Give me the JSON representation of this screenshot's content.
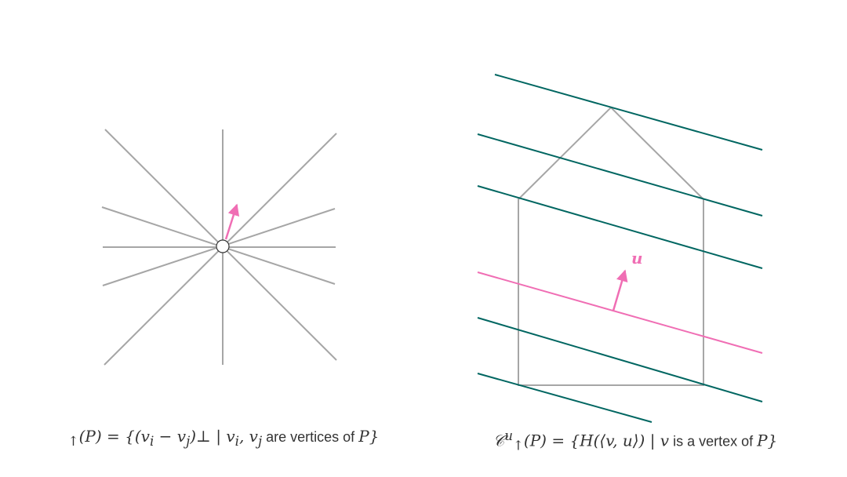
{
  "colors": {
    "line_gray": "#a6a6a6",
    "line_teal": "#006661",
    "accent_pink": "#f06eb4",
    "caption_text": "#333333"
  },
  "left_figure": {
    "arrow_color": "#f06eb4"
  },
  "right_figure": {
    "vector_label": "u",
    "highlight_color": "#f06eb4",
    "hyperplane_color": "#006661"
  },
  "captions": {
    "left": {
      "lhs": "𝒭",
      "lhs_sub": "↑",
      "open": "(P) = {(v",
      "sub_i": "i",
      "minus": " − v",
      "sub_j": "j",
      "perp": ")⊥",
      "bar": " | v",
      "sub_i2": "i",
      "comma": ", v",
      "sub_j2": "j",
      "words": " are vertices of ",
      "P": "P",
      "close": "}"
    },
    "right": {
      "lhs": "𝒞",
      "lhs_sup": "u",
      "lhs_sub": "↑",
      "open": "(P) = {H(⟨v, u⟩) | v",
      "words": " is a vertex of ",
      "P": "P",
      "close": "}"
    }
  }
}
